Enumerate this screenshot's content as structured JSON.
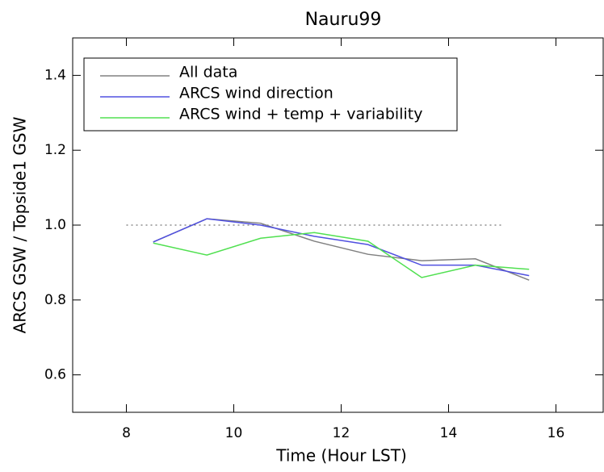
{
  "chart_data": {
    "type": "line",
    "title": "Nauru99",
    "xlabel": "Time (Hour LST)",
    "ylabel": "ARCS GSW / Topside1 GSW",
    "x": [
      8.5,
      9.5,
      10.5,
      11.5,
      12.5,
      13.5,
      14.5,
      15.5
    ],
    "series": [
      {
        "name": "All data",
        "color": "#808080",
        "values": [
          0.955,
          1.017,
          1.005,
          0.957,
          0.922,
          0.905,
          0.91,
          0.853
        ]
      },
      {
        "name": "ARCS wind direction",
        "color": "#5050e0",
        "values": [
          0.955,
          1.017,
          1.0,
          0.97,
          0.948,
          0.893,
          0.893,
          0.865
        ]
      },
      {
        "name": "ARCS wind + temp + variability",
        "color": "#50e050",
        "values": [
          0.952,
          0.92,
          0.965,
          0.98,
          0.957,
          0.86,
          0.893,
          0.882
        ]
      }
    ],
    "reference_line": {
      "y": 1.0,
      "xmin": 8,
      "xmax": 15
    },
    "xlim": [
      7,
      17
    ],
    "xticks": [
      8,
      10,
      12,
      14,
      16
    ],
    "ylim": [
      0.5,
      1.5
    ],
    "yticks": [
      0.6,
      0.8,
      {
        "value": 1.0,
        "label": "1.0"
      },
      1.2,
      1.4
    ],
    "legend": "upper left",
    "grid": false
  }
}
